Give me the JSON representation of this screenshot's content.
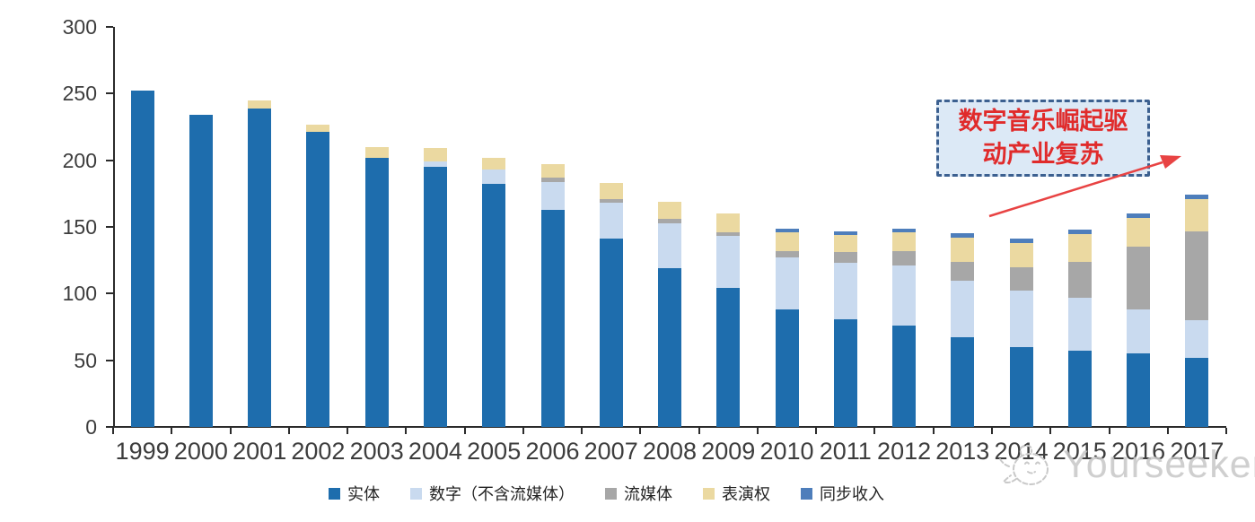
{
  "chart_data": {
    "type": "bar",
    "stacked": true,
    "title": "",
    "xlabel": "",
    "ylabel": "",
    "categories": [
      "1999",
      "2000",
      "2001",
      "2002",
      "2003",
      "2004",
      "2005",
      "2006",
      "2007",
      "2008",
      "2009",
      "2010",
      "2011",
      "2012",
      "2013",
      "2014",
      "2015",
      "2016",
      "2017"
    ],
    "series": [
      {
        "name": "实体",
        "color": "#1E6DAD",
        "values": [
          252,
          234,
          239,
          221,
          202,
          195,
          182,
          163,
          141,
          119,
          104,
          88,
          81,
          76,
          67,
          60,
          57,
          55,
          52
        ]
      },
      {
        "name": "数字（不含流媒体）",
        "color": "#C9DAEF",
        "values": [
          0,
          0,
          0,
          0,
          0,
          4,
          11,
          21,
          27,
          34,
          39,
          39,
          42,
          45,
          43,
          42,
          40,
          33,
          28
        ]
      },
      {
        "name": "流媒体",
        "color": "#A7A7A7",
        "values": [
          0,
          0,
          0,
          0,
          0,
          0,
          0,
          3,
          3,
          3,
          3,
          5,
          8,
          11,
          14,
          18,
          27,
          47,
          67
        ]
      },
      {
        "name": "表演权",
        "color": "#EBD9A1",
        "values": [
          0,
          0,
          6,
          6,
          8,
          10,
          9,
          10,
          12,
          13,
          14,
          14,
          13,
          14,
          18,
          18,
          21,
          22,
          24
        ]
      },
      {
        "name": "同步收入",
        "color": "#4E7EBB",
        "values": [
          0,
          0,
          0,
          0,
          0,
          0,
          0,
          0,
          0,
          0,
          0,
          3,
          3,
          3,
          3,
          3,
          3,
          3,
          3
        ]
      }
    ],
    "ylim": [
      0,
      300
    ],
    "yticks": [
      0,
      50,
      100,
      150,
      200,
      250,
      300
    ],
    "grid": false,
    "legend_position": "bottom"
  },
  "annotation": {
    "line1": "数字音乐崛起驱",
    "line2": "动产业复苏",
    "arrow_color": "#E84343",
    "box_fill": "#dce9f6",
    "box_border": "#3c6090",
    "text_color": "#e02b2b"
  },
  "watermark": {
    "text": "Yourseeker"
  }
}
